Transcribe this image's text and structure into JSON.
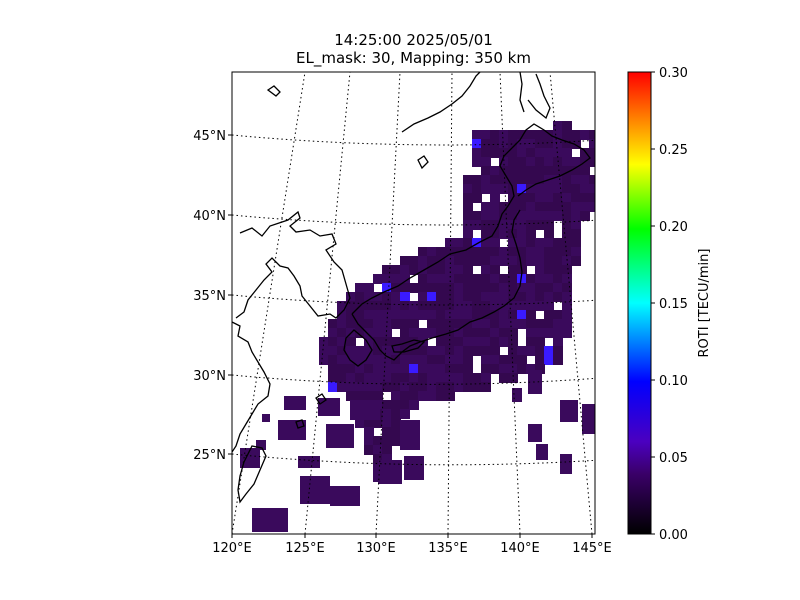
{
  "title": {
    "line1": "14:25:00 2025/05/01",
    "line2": "EL_mask: 30, Mapping: 350 km"
  },
  "map": {
    "lon_range": [
      120,
      145
    ],
    "lat_range": [
      20,
      49
    ],
    "lon_ticks": [
      "120°E",
      "125°E",
      "130°E",
      "135°E",
      "140°E",
      "145°E"
    ],
    "lat_ticks": [
      "25°N",
      "30°N",
      "35°N",
      "40°N",
      "45°N"
    ],
    "gridlines": "dotted",
    "data_color_dominant": "#3a0a5c",
    "data_color_high": "#3a1aff"
  },
  "colorbar": {
    "label": "ROTI [TECU/min]",
    "range": [
      0.0,
      0.3
    ],
    "ticks": [
      "0.00",
      "0.05",
      "0.10",
      "0.15",
      "0.20",
      "0.25",
      "0.30"
    ],
    "colormap": [
      "#000000",
      "#4b0082",
      "#0000ff",
      "#00ffff",
      "#00ff00",
      "#ffff00",
      "#ff8000",
      "#ff0000"
    ]
  }
}
